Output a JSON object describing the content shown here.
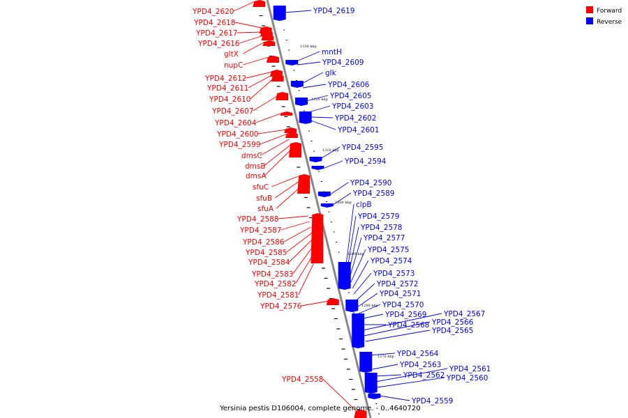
{
  "legend": [
    {
      "label": "Forward",
      "color": "#ff0000"
    },
    {
      "label": "Reverse",
      "color": "#0000ff"
    }
  ],
  "caption": "Yersinia pestis D106004, complete genome. - 0..4640720",
  "kbp_markers": [
    "1330 kbp",
    "1320 kbp",
    "1310 kbp",
    "1300 kbp",
    "1290 kbp",
    "1280 kbp",
    "1270 kbp"
  ],
  "forward_genes": [
    "YPD4_2620",
    "YPD4_2618",
    "YPD4_2617",
    "YPD4_2616",
    "gltX",
    "nupC",
    "YPD4_2612",
    "YPD4_2611",
    "YPD4_2610",
    "YPD4_2607",
    "YPD4_2604",
    "YPD4_2600",
    "YPD4_2599",
    "dmsC",
    "dmsB",
    "dmsA",
    "sfuC",
    "sfuB",
    "sfuA",
    "YPD4_2588",
    "YPD4_2587",
    "YPD4_2586",
    "YPD4_2585",
    "YPD4_2584",
    "YPD4_2583",
    "YPD4_2582",
    "YPD4_2581",
    "YPD4_2576",
    "YPD4_2558"
  ],
  "reverse_genes": [
    "YPD4_2619",
    "mntH",
    "YPD4_2609",
    "glk",
    "YPD4_2606",
    "YPD4_2605",
    "YPD4_2603",
    "YPD4_2602",
    "YPD4_2601",
    "YPD4_2595",
    "YPD4_2594",
    "YPD4_2590",
    "YPD4_2589",
    "clpB",
    "YPD4_2579",
    "YPD4_2578",
    "YPD4_2577",
    "YPD4_2575",
    "YPD4_2574",
    "YPD4_2573",
    "YPD4_2572",
    "YPD4_2571",
    "YPD4_2570",
    "YPD4_2569",
    "YPD4_2568",
    "YPD4_2567",
    "YPD4_2566",
    "YPD4_2565",
    "YPD4_2564",
    "YPD4_2563",
    "YPD4_2562",
    "YPD4_2561",
    "YPD4_2560",
    "YPD4_2559"
  ]
}
